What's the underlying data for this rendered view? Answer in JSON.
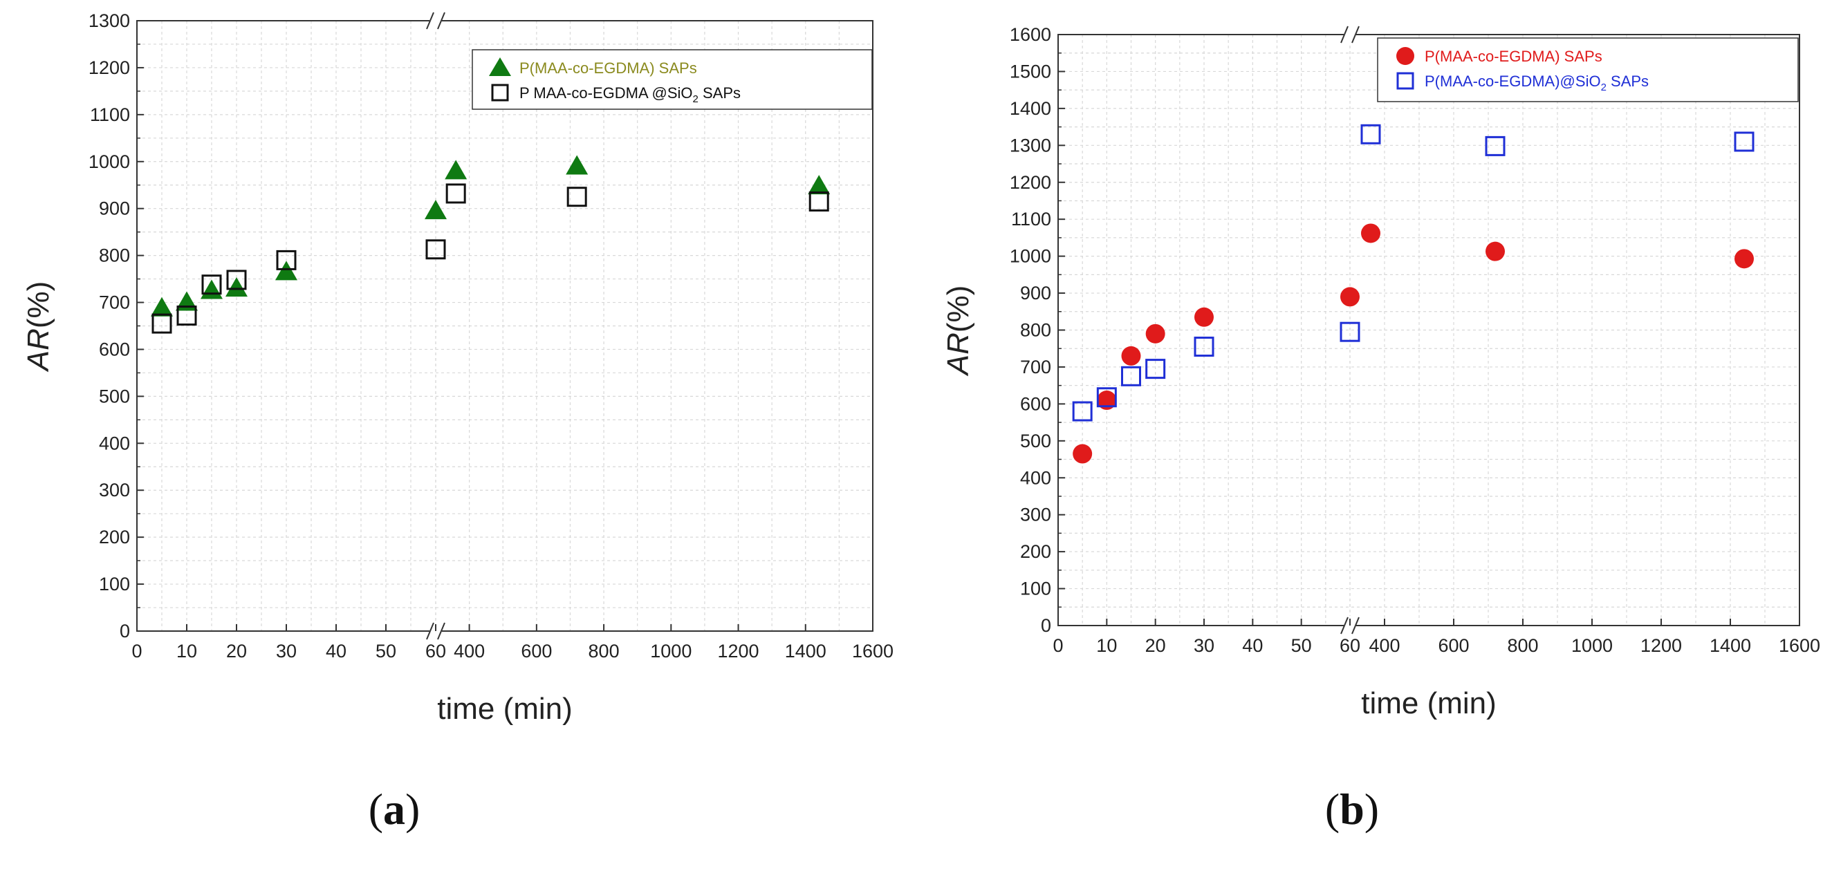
{
  "chart_data": [
    {
      "type": "scatter",
      "panel_label": "a",
      "title": "",
      "xlabel": "time (min)",
      "ylabel_italic": "AR",
      "ylabel_rest": "(%)",
      "ylim": [
        0,
        1300
      ],
      "y_ticks": [
        0,
        100,
        200,
        300,
        400,
        500,
        600,
        700,
        800,
        900,
        1000,
        1100,
        1200,
        1300
      ],
      "x_axis_break": true,
      "x_ticks_low": [
        0,
        10,
        20,
        30,
        40,
        50,
        60
      ],
      "x_ticks_high": [
        400,
        600,
        800,
        1000,
        1200,
        1400,
        1600
      ],
      "legend_position": "top-right",
      "series": [
        {
          "name": "P(MAA-co-EGDMA) SAPs",
          "legend_color": "#8a8a1e",
          "marker": "triangle",
          "color": "#0f7a12",
          "x": [
            5,
            10,
            15,
            20,
            30,
            60,
            360,
            720,
            1440
          ],
          "values": [
            688,
            700,
            725,
            730,
            765,
            895,
            980,
            990,
            948
          ]
        },
        {
          "name": "P  MAA-co-EGDMA  @SiO",
          "name_sub": "2",
          "name_tail": " SAPs",
          "legend_color": "#111111",
          "marker": "open-square",
          "color": "#111111",
          "x": [
            5,
            10,
            15,
            20,
            30,
            60,
            360,
            720,
            1440
          ],
          "values": [
            655,
            672,
            738,
            748,
            790,
            813,
            932,
            925,
            915
          ]
        }
      ]
    },
    {
      "type": "scatter",
      "panel_label": "b",
      "title": "",
      "xlabel": "time (min)",
      "ylabel_italic": "AR",
      "ylabel_rest": "(%)",
      "ylim": [
        0,
        1600
      ],
      "y_ticks": [
        0,
        100,
        200,
        300,
        400,
        500,
        600,
        700,
        800,
        900,
        1000,
        1100,
        1200,
        1300,
        1400,
        1500,
        1600
      ],
      "x_axis_break": true,
      "x_ticks_low": [
        0,
        10,
        20,
        30,
        40,
        50,
        60
      ],
      "x_ticks_high": [
        400,
        600,
        800,
        1000,
        1200,
        1400,
        1600
      ],
      "legend_position": "top-right",
      "series": [
        {
          "name": "P(MAA-co-EGDMA) SAPs",
          "legend_color": "#e01b1b",
          "marker": "circle",
          "color": "#e01b1b",
          "x": [
            5,
            10,
            15,
            20,
            30,
            60,
            360,
            720,
            1440
          ],
          "values": [
            465,
            610,
            730,
            790,
            835,
            890,
            1062,
            1013,
            993
          ]
        },
        {
          "name": "P(MAA-co-EGDMA)@SiO",
          "name_sub": "2",
          "name_tail": " SAPs",
          "legend_color": "#1f2fd6",
          "marker": "open-square",
          "color": "#1f2fd6",
          "x": [
            5,
            10,
            15,
            20,
            30,
            60,
            360,
            720,
            1440
          ],
          "values": [
            580,
            618,
            675,
            695,
            755,
            795,
            1330,
            1298,
            1310
          ]
        }
      ]
    }
  ],
  "captions": [
    {
      "open": "(",
      "letter": "a",
      "close": ")"
    },
    {
      "open": "(",
      "letter": "b",
      "close": ")"
    }
  ]
}
